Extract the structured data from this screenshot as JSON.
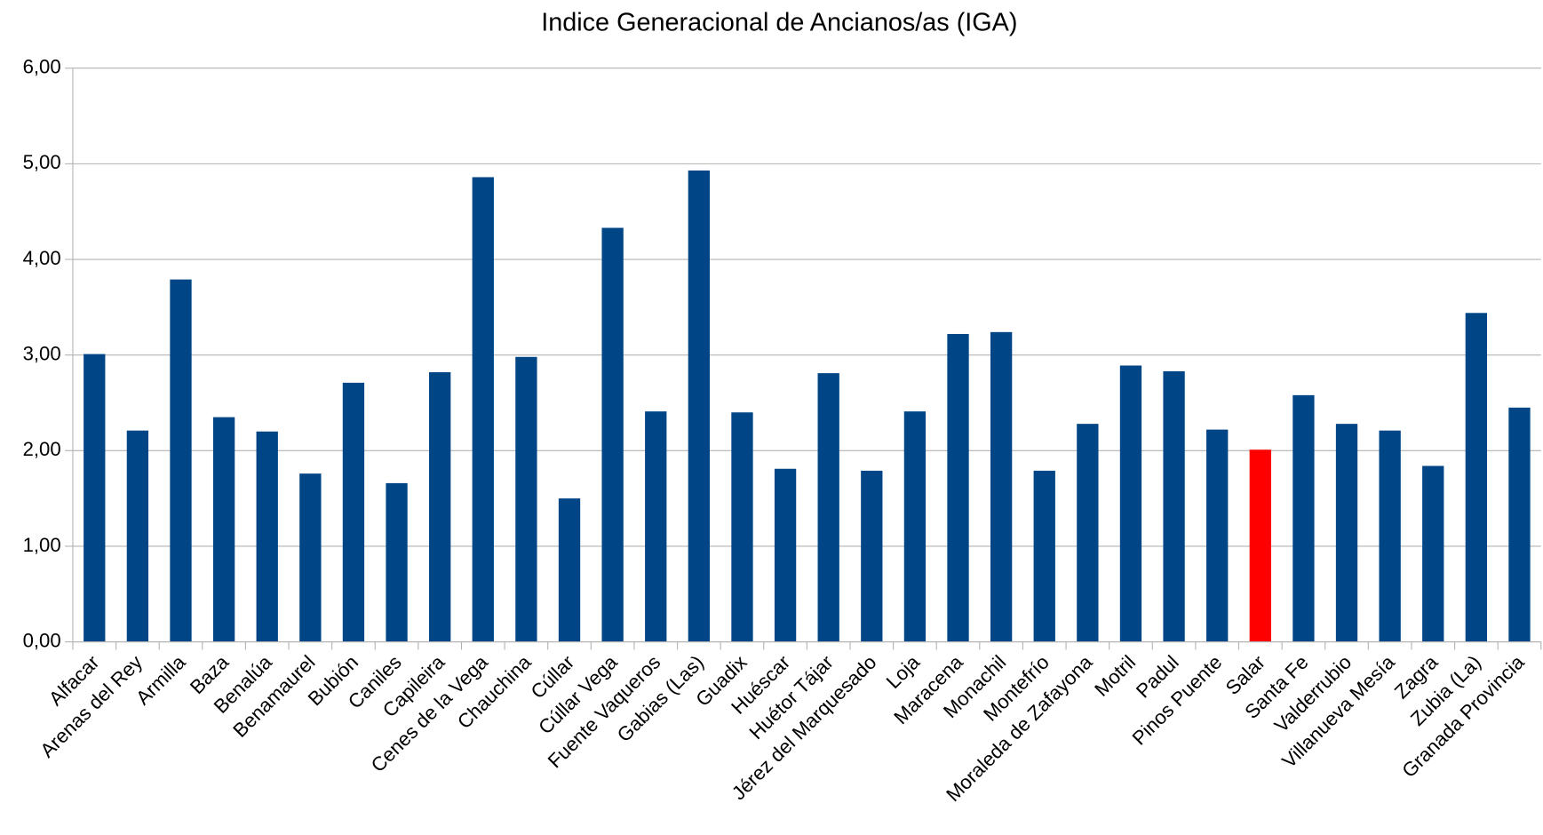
{
  "chart_data": {
    "type": "bar",
    "title": "Indice Generacional de Ancianos/as (IGA)",
    "categories": [
      "Alfacar",
      "Arenas del Rey",
      "Armilla",
      "Baza",
      "Benalúa",
      "Benamaurel",
      "Bubión",
      "Caniles",
      "Capileira",
      "Cenes de la Vega",
      "Chauchina",
      "Cúllar",
      "Cúllar Vega",
      "Fuente Vaqueros",
      "Gabias (Las)",
      "Guadix",
      "Huéscar",
      "Huétor Tájar",
      "Jérez del Marquesado",
      "Loja",
      "Maracena",
      "Monachil",
      "Montefrío",
      "Moraleda de Zafayona",
      "Motril",
      "Padul",
      "Pinos Puente",
      "Salar",
      "Santa Fe",
      "Valderrubio",
      "Villanueva Mesía",
      "Zagra",
      "Zubia (La)",
      "Granada Provincia"
    ],
    "values": [
      3.01,
      2.21,
      3.79,
      2.35,
      2.2,
      1.76,
      2.71,
      1.66,
      2.82,
      4.86,
      2.98,
      1.5,
      4.33,
      2.41,
      4.93,
      2.4,
      1.81,
      2.81,
      1.79,
      2.41,
      3.22,
      3.24,
      1.79,
      2.28,
      2.89,
      2.83,
      2.22,
      2.01,
      2.58,
      2.28,
      2.21,
      1.84,
      3.44,
      2.45
    ],
    "colors": [
      "#004586",
      "#004586",
      "#004586",
      "#004586",
      "#004586",
      "#004586",
      "#004586",
      "#004586",
      "#004586",
      "#004586",
      "#004586",
      "#004586",
      "#004586",
      "#004586",
      "#004586",
      "#004586",
      "#004586",
      "#004586",
      "#004586",
      "#004586",
      "#004586",
      "#004586",
      "#004586",
      "#004586",
      "#004586",
      "#004586",
      "#004586",
      "#ff0000",
      "#004586",
      "#004586",
      "#004586",
      "#004586",
      "#004586",
      "#004586"
    ],
    "ylim": [
      0,
      6
    ],
    "yticks": [
      {
        "value": 0,
        "label": "0,00"
      },
      {
        "value": 1,
        "label": "1,00"
      },
      {
        "value": 2,
        "label": "2,00"
      },
      {
        "value": 3,
        "label": "3,00"
      },
      {
        "value": 4,
        "label": "4,00"
      },
      {
        "value": 5,
        "label": "5,00"
      },
      {
        "value": 6,
        "label": "6,00"
      }
    ],
    "grid": true
  }
}
